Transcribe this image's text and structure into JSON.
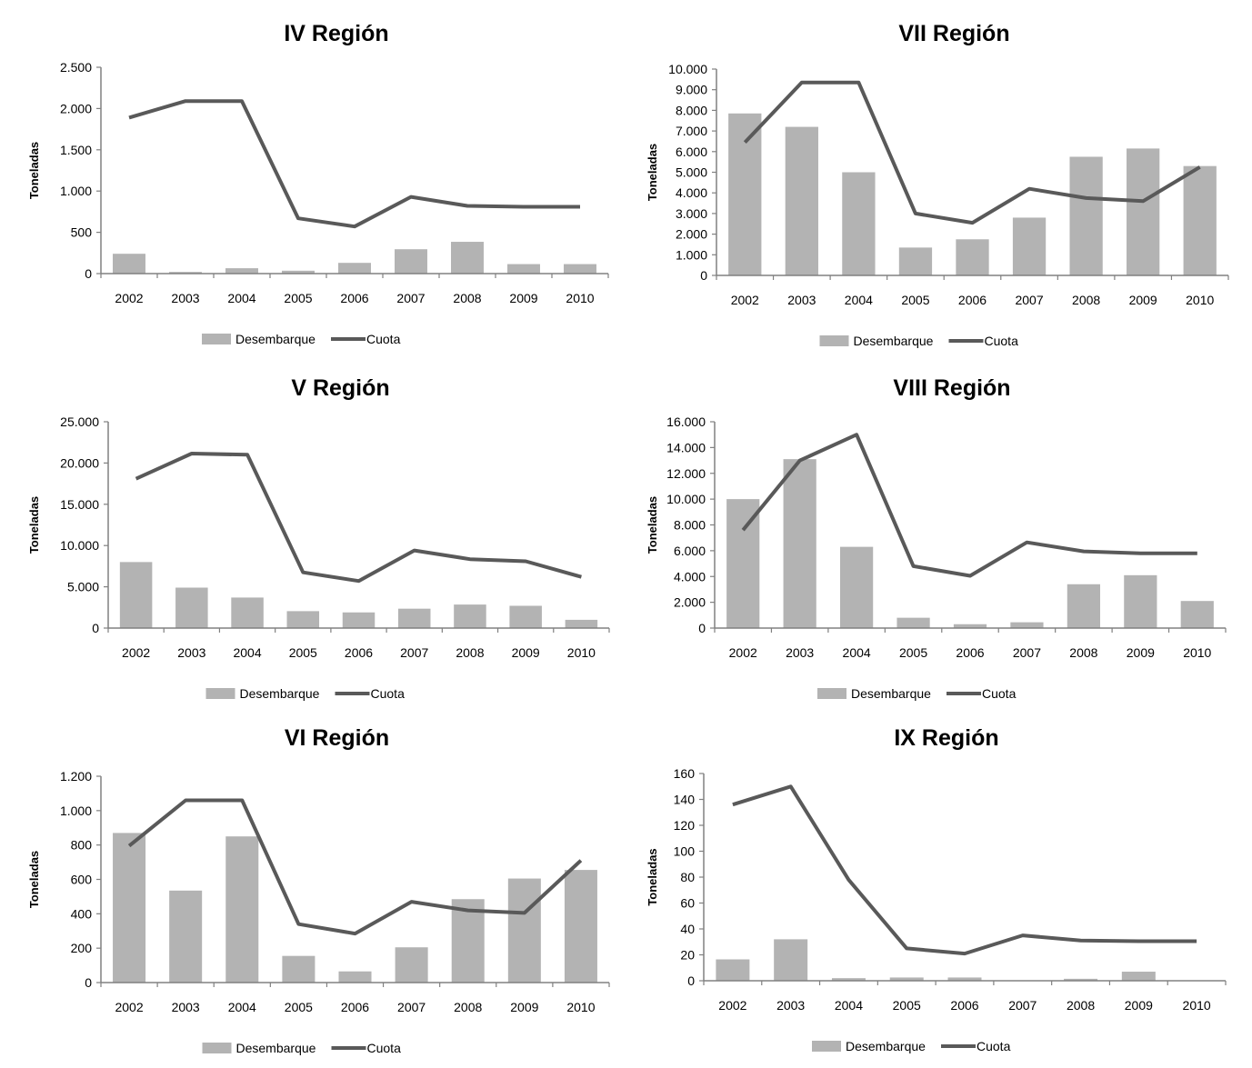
{
  "chart_data": [
    {
      "type": "bar+line",
      "title": "IV Región",
      "ylabel": "Toneladas",
      "xlabel": "",
      "categories": [
        "2002",
        "2003",
        "2004",
        "2005",
        "2006",
        "2007",
        "2008",
        "2009",
        "2010"
      ],
      "ylim": [
        0,
        2500
      ],
      "yticks": [
        0,
        500,
        1000,
        1500,
        2000,
        2500
      ],
      "ytick_labels": [
        "0",
        "500",
        "1.000",
        "1.500",
        "2.000",
        "2.500"
      ],
      "series": [
        {
          "name": "Desembarque",
          "kind": "bar",
          "values": [
            240,
            20,
            65,
            35,
            130,
            295,
            385,
            115,
            115
          ]
        },
        {
          "name": "Cuota",
          "kind": "line",
          "values": [
            1890,
            2090,
            2090,
            670,
            570,
            930,
            820,
            810,
            810
          ]
        }
      ],
      "legend": "bottom",
      "grid": false
    },
    {
      "type": "bar+line",
      "title": "VII Región",
      "ylabel": "Toneladas",
      "xlabel": "",
      "categories": [
        "2002",
        "2003",
        "2004",
        "2005",
        "2006",
        "2007",
        "2008",
        "2009",
        "2010"
      ],
      "ylim": [
        0,
        10000
      ],
      "yticks": [
        0,
        1000,
        2000,
        3000,
        4000,
        5000,
        6000,
        7000,
        8000,
        9000,
        10000
      ],
      "ytick_labels": [
        "0",
        "1.000",
        "2.000",
        "3.000",
        "4.000",
        "5.000",
        "6.000",
        "7.000",
        "8.000",
        "9.000",
        "10.000"
      ],
      "series": [
        {
          "name": "Desembarque",
          "kind": "bar",
          "values": [
            7850,
            7200,
            5000,
            1350,
            1750,
            2800,
            5750,
            6150,
            5300
          ]
        },
        {
          "name": "Cuota",
          "kind": "line",
          "values": [
            6450,
            9350,
            9350,
            3000,
            2550,
            4200,
            3750,
            3600,
            5250
          ]
        }
      ],
      "legend": "bottom",
      "grid": false
    },
    {
      "type": "bar+line",
      "title": "V Región",
      "ylabel": "Toneladas",
      "xlabel": "",
      "categories": [
        "2002",
        "2003",
        "2004",
        "2005",
        "2006",
        "2007",
        "2008",
        "2009",
        "2010"
      ],
      "ylim": [
        0,
        25000
      ],
      "yticks": [
        0,
        5000,
        10000,
        15000,
        20000,
        25000
      ],
      "ytick_labels": [
        "0",
        "5.000",
        "10.000",
        "15.000",
        "20.000",
        "25.000"
      ],
      "series": [
        {
          "name": "Desembarque",
          "kind": "bar",
          "values": [
            8000,
            4900,
            3700,
            2050,
            1900,
            2350,
            2850,
            2700,
            1000
          ]
        },
        {
          "name": "Cuota",
          "kind": "line",
          "values": [
            18100,
            21150,
            21000,
            6750,
            5700,
            9400,
            8350,
            8100,
            6200
          ]
        }
      ],
      "legend": "bottom",
      "grid": false
    },
    {
      "type": "bar+line",
      "title": "VIII Región",
      "ylabel": "Toneladas",
      "xlabel": "",
      "categories": [
        "2002",
        "2003",
        "2004",
        "2005",
        "2006",
        "2007",
        "2008",
        "2009",
        "2010"
      ],
      "ylim": [
        0,
        16000
      ],
      "yticks": [
        0,
        2000,
        4000,
        6000,
        8000,
        10000,
        12000,
        14000,
        16000
      ],
      "ytick_labels": [
        "0",
        "2.000",
        "4.000",
        "6.000",
        "8.000",
        "10.000",
        "12.000",
        "14.000",
        "16.000"
      ],
      "series": [
        {
          "name": "Desembarque",
          "kind": "bar",
          "values": [
            10000,
            13100,
            6300,
            800,
            300,
            450,
            3400,
            4100,
            2100
          ]
        },
        {
          "name": "Cuota",
          "kind": "line",
          "values": [
            7600,
            13000,
            15000,
            4800,
            4050,
            6650,
            5950,
            5800,
            5800
          ]
        }
      ],
      "legend": "bottom",
      "grid": false
    },
    {
      "type": "bar+line",
      "title": "VI Región",
      "ylabel": "Toneladas",
      "xlabel": "",
      "categories": [
        "2002",
        "2003",
        "2004",
        "2005",
        "2006",
        "2007",
        "2008",
        "2009",
        "2010"
      ],
      "ylim": [
        0,
        1200
      ],
      "yticks": [
        0,
        200,
        400,
        600,
        800,
        1000,
        1200
      ],
      "ytick_labels": [
        "0",
        "200",
        "400",
        "600",
        "800",
        "1.000",
        "1.200"
      ],
      "series": [
        {
          "name": "Desembarque",
          "kind": "bar",
          "values": [
            870,
            535,
            850,
            155,
            65,
            205,
            485,
            605,
            655
          ]
        },
        {
          "name": "Cuota",
          "kind": "line",
          "values": [
            795,
            1060,
            1060,
            340,
            285,
            470,
            420,
            405,
            710
          ]
        }
      ],
      "legend": "bottom",
      "grid": false
    },
    {
      "type": "bar+line",
      "title": "IX Región",
      "ylabel": "Toneladas",
      "xlabel": "",
      "categories": [
        "2002",
        "2003",
        "2004",
        "2005",
        "2006",
        "2007",
        "2008",
        "2009",
        "2010"
      ],
      "ylim": [
        0,
        160
      ],
      "yticks": [
        0,
        20,
        40,
        60,
        80,
        100,
        120,
        140,
        160
      ],
      "ytick_labels": [
        "0",
        "20",
        "40",
        "60",
        "80",
        "100",
        "120",
        "140",
        "160"
      ],
      "series": [
        {
          "name": "Desembarque",
          "kind": "bar",
          "values": [
            16.5,
            32,
            2,
            2.5,
            2.5,
            0,
            1.5,
            7,
            0
          ]
        },
        {
          "name": "Cuota",
          "kind": "line",
          "values": [
            136,
            150,
            78,
            25,
            21,
            35,
            31,
            30.5,
            30.5
          ]
        }
      ],
      "legend": "bottom",
      "grid": false
    }
  ],
  "colors": {
    "bar": "#b3b3b3",
    "line": "#595959",
    "axis": "#808080",
    "text": "#000000"
  }
}
